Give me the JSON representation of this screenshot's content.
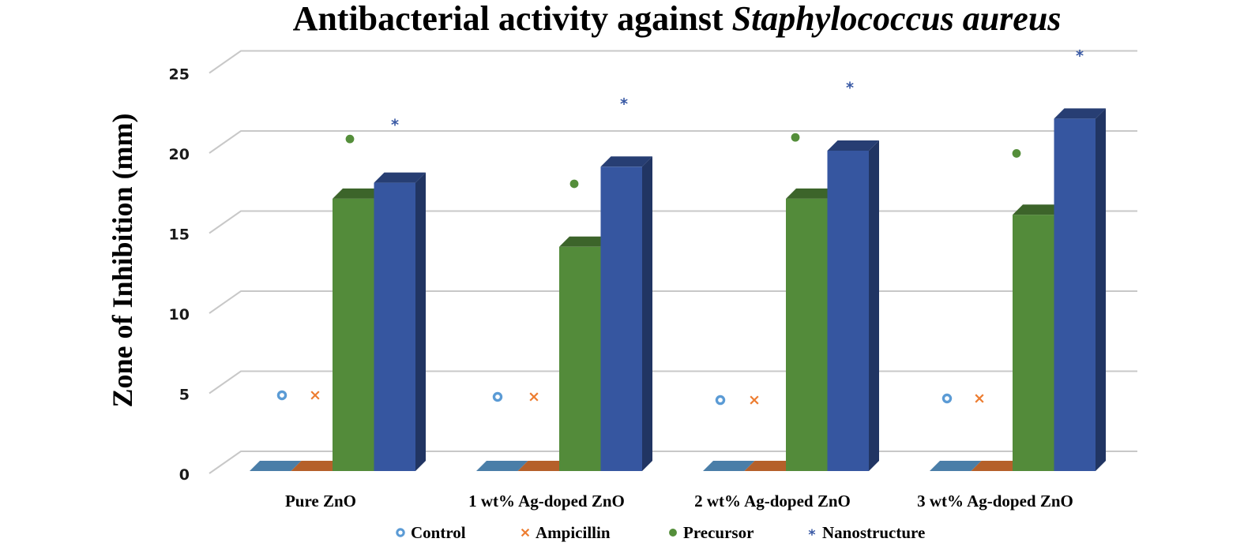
{
  "chart_data": {
    "type": "bar",
    "title": "Antibacterial activity against ",
    "title_italic": "Staphylococcus aureus",
    "xlabel": "",
    "ylabel": "Zone of Inhibition (mm)",
    "ylim": [
      0,
      25
    ],
    "yticks": [
      0,
      5,
      10,
      15,
      20,
      25
    ],
    "ytick_labels": [
      "0",
      "5",
      "10",
      "15",
      "20",
      "25"
    ],
    "grid": true,
    "style": "3d-clustered-column",
    "legend_position": "bottom",
    "categories": [
      "Pure ZnO",
      "1 wt% Ag-doped ZnO",
      "2 wt% Ag-doped ZnO",
      "3 wt% Ag-doped ZnO"
    ],
    "series": [
      {
        "name": "Control",
        "values": [
          0,
          0,
          0,
          0
        ],
        "color": "#4a7ea8",
        "marker": "circle-open",
        "marker_color": "#5b9bd5"
      },
      {
        "name": "Ampicillin",
        "values": [
          0,
          0,
          0,
          0
        ],
        "color": "#b5602a",
        "marker": "x",
        "marker_color": "#ed7d31"
      },
      {
        "name": "Precursor",
        "values": [
          17,
          14,
          17,
          16
        ],
        "color": "#538b3a",
        "marker": "circle-filled",
        "marker_color": "#548e3a"
      },
      {
        "name": "Nanostructure",
        "values": [
          18,
          19,
          20,
          22
        ],
        "color": "#3656a0",
        "marker": "asterisk",
        "marker_color": "#3a5aa5"
      }
    ],
    "annotations": [
      {
        "category": "Pure ZnO",
        "series": "Control",
        "marker": "o",
        "y": 3.5
      },
      {
        "category": "Pure ZnO",
        "series": "Ampicillin",
        "marker": "×",
        "y": 3.5
      },
      {
        "category": "Pure ZnO",
        "series": "Precursor",
        "marker": "●",
        "y": 19.5
      },
      {
        "category": "Pure ZnO",
        "series": "Nanostructure",
        "marker": "*",
        "y": 20.5
      },
      {
        "category": "1 wt% Ag-doped ZnO",
        "series": "Control",
        "marker": "o",
        "y": 3.4
      },
      {
        "category": "1 wt% Ag-doped ZnO",
        "series": "Ampicillin",
        "marker": "×",
        "y": 3.4
      },
      {
        "category": "1 wt% Ag-doped ZnO",
        "series": "Precursor",
        "marker": "●",
        "y": 16.7
      },
      {
        "category": "1 wt% Ag-doped ZnO",
        "series": "Nanostructure",
        "marker": "*",
        "y": 21.8
      },
      {
        "category": "2 wt% Ag-doped ZnO",
        "series": "Control",
        "marker": "o",
        "y": 3.2
      },
      {
        "category": "2 wt% Ag-doped ZnO",
        "series": "Ampicillin",
        "marker": "×",
        "y": 3.2
      },
      {
        "category": "2 wt% Ag-doped ZnO",
        "series": "Precursor",
        "marker": "●",
        "y": 19.6
      },
      {
        "category": "2 wt% Ag-doped ZnO",
        "series": "Nanostructure",
        "marker": "*",
        "y": 22.8
      },
      {
        "category": "3 wt% Ag-doped ZnO",
        "series": "Control",
        "marker": "o",
        "y": 3.3
      },
      {
        "category": "3 wt% Ag-doped ZnO",
        "series": "Ampicillin",
        "marker": "×",
        "y": 3.3
      },
      {
        "category": "3 wt% Ag-doped ZnO",
        "series": "Precursor",
        "marker": "●",
        "y": 18.6
      },
      {
        "category": "3 wt% Ag-doped ZnO",
        "series": "Nanostructure",
        "marker": "*",
        "y": 24.8
      }
    ]
  }
}
